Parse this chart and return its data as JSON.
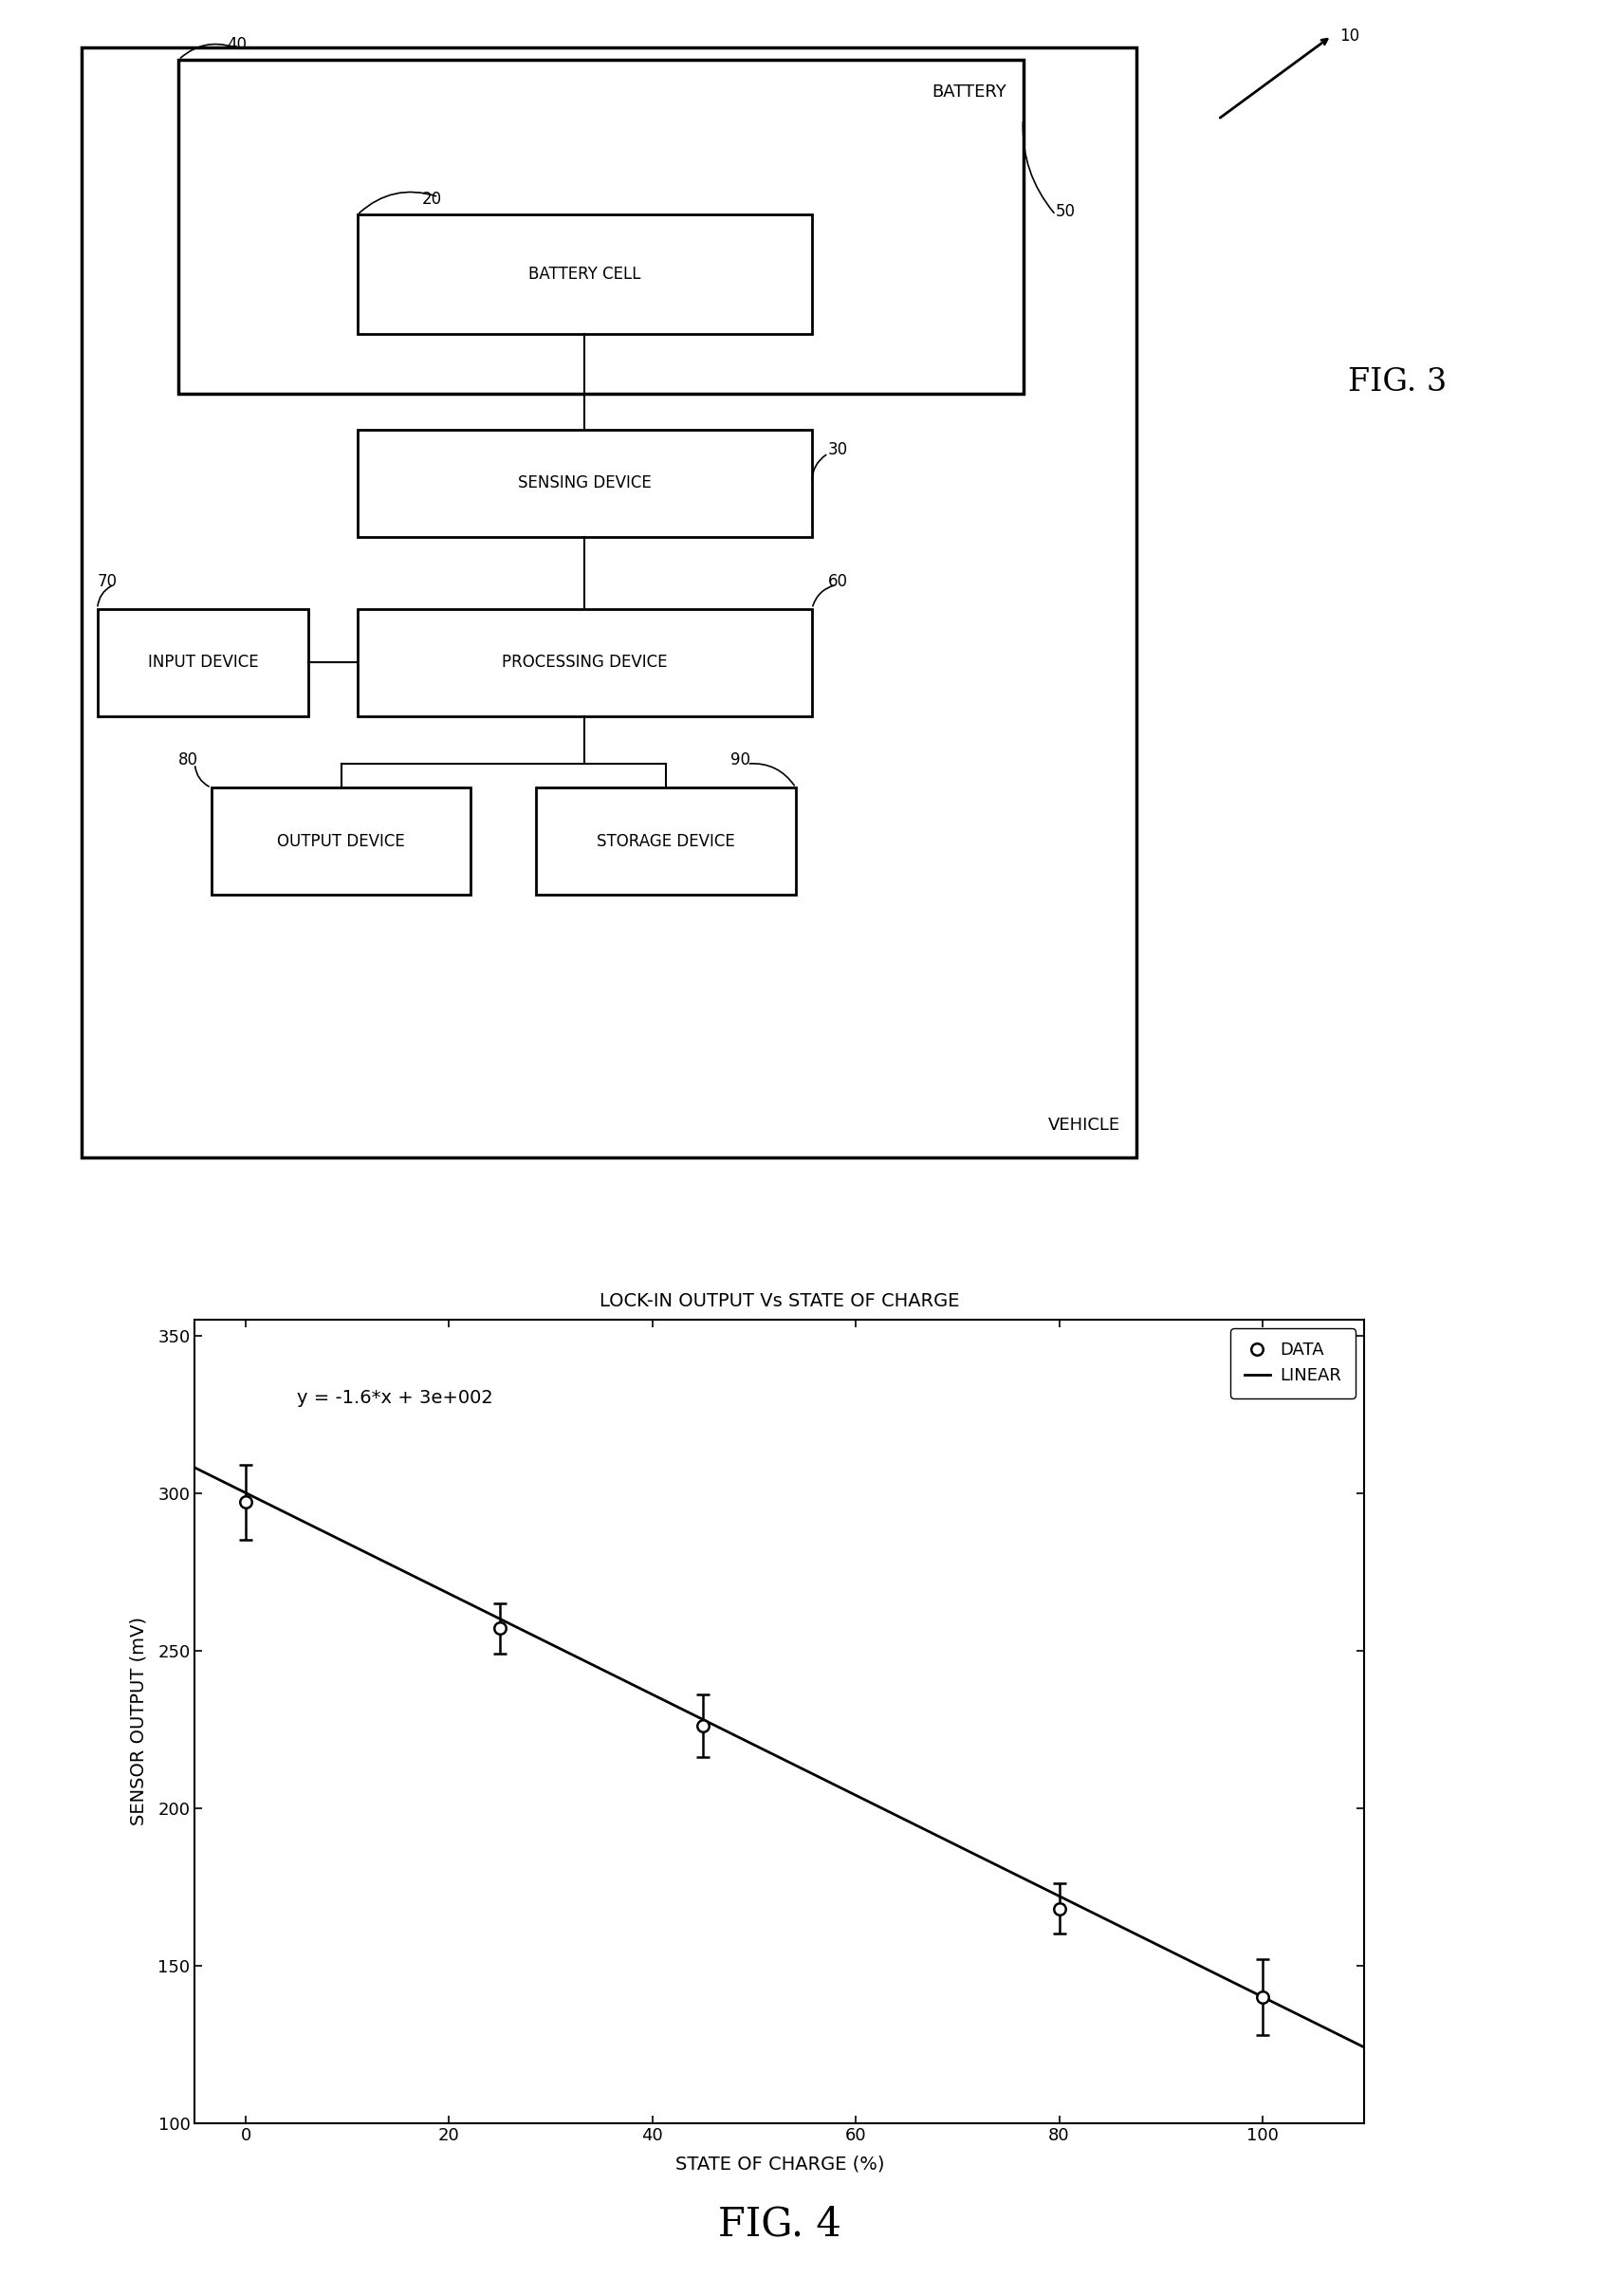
{
  "fig3": {
    "outer_box_label": "VEHICLE",
    "battery_box_label": "BATTERY",
    "battery_cell_label": "BATTERY CELL",
    "sensing_device_label": "SENSING DEVICE",
    "input_device_label": "INPUT DEVICE",
    "processing_device_label": "PROCESSING DEVICE",
    "output_device_label": "OUTPUT DEVICE",
    "storage_device_label": "STORAGE DEVICE",
    "label_10": "10",
    "label_20": "20",
    "label_30": "30",
    "label_40": "40",
    "label_50": "50",
    "label_60": "60",
    "label_70": "70",
    "label_80": "80",
    "label_90": "90",
    "fig_label": "FIG. 3"
  },
  "fig4": {
    "title": "LOCK-IN OUTPUT Vs STATE OF CHARGE",
    "xlabel": "STATE OF CHARGE (%)",
    "ylabel": "SENSOR OUTPUT (mV)",
    "equation": "y = -1.6*x + 3e+002",
    "x_data": [
      0,
      25,
      45,
      80,
      100
    ],
    "y_data": [
      297,
      257,
      226,
      168,
      140
    ],
    "y_err": [
      12,
      8,
      10,
      8,
      12
    ],
    "xlim": [
      -5,
      110
    ],
    "ylim": [
      100,
      355
    ],
    "xticks": [
      0,
      20,
      40,
      60,
      80,
      100
    ],
    "yticks": [
      100,
      150,
      200,
      250,
      300,
      350
    ],
    "linear_x_start": -5,
    "linear_x_end": 110,
    "linear_intercept": 300,
    "linear_slope": -1.6,
    "legend_data_label": "DATA",
    "legend_linear_label": "LINEAR",
    "fig_label": "FIG. 4"
  },
  "bg_color": "#ffffff",
  "line_color": "#000000"
}
